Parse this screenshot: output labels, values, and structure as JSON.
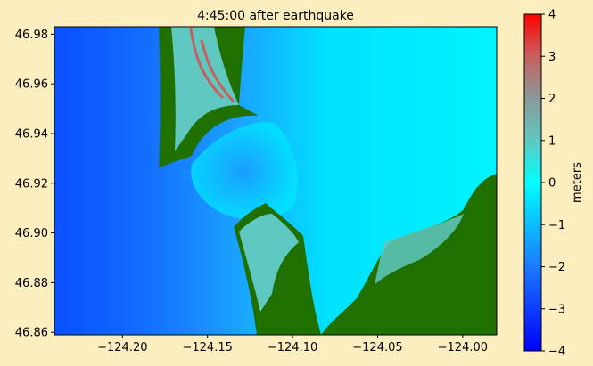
{
  "chart_data": {
    "type": "heatmap",
    "title": "4:45:00 after earthquake",
    "xlabel": "",
    "ylabel": "",
    "xlim": [
      -124.24,
      -123.98
    ],
    "ylim": [
      46.859,
      46.983
    ],
    "x_ticks": [
      -124.2,
      -124.15,
      -124.1,
      -124.05,
      -124.0
    ],
    "x_tick_labels": [
      "−124.20",
      "−124.15",
      "−124.10",
      "−124.05",
      "−124.00"
    ],
    "y_ticks": [
      46.86,
      46.88,
      46.9,
      46.92,
      46.94,
      46.96,
      46.98
    ],
    "y_tick_labels": [
      "46.86",
      "46.88",
      "46.90",
      "46.92",
      "46.94",
      "46.96",
      "46.98"
    ],
    "colorbar": {
      "label": "meters",
      "range": [
        -4,
        4
      ],
      "ticks": [
        4,
        3,
        2,
        1,
        0,
        -1,
        -2,
        -3,
        -4
      ],
      "tick_labels": [
        "4",
        "3",
        "2",
        "1",
        "0",
        "−1",
        "−2",
        "−3",
        "−4"
      ],
      "colormap": [
        {
          "v": -4,
          "c": "#0000ff"
        },
        {
          "v": -2,
          "c": "#1a7aff"
        },
        {
          "v": 0,
          "c": "#00ffff"
        },
        {
          "v": 1,
          "c": "#5fc8c0"
        },
        {
          "v": 2,
          "c": "#8a9a9a"
        },
        {
          "v": 3,
          "c": "#c86060"
        },
        {
          "v": 4,
          "c": "#ff0000"
        }
      ]
    },
    "land_color": "#1f7000",
    "grid": false
  },
  "colors": {
    "background": "#fdeec0",
    "ocean_deep": "#0a55ff",
    "ocean_mid": "#1a8cff",
    "ocean_shallow": "#00e6ff",
    "inundation": "#5fc8c0",
    "high_water": "#c86060"
  }
}
